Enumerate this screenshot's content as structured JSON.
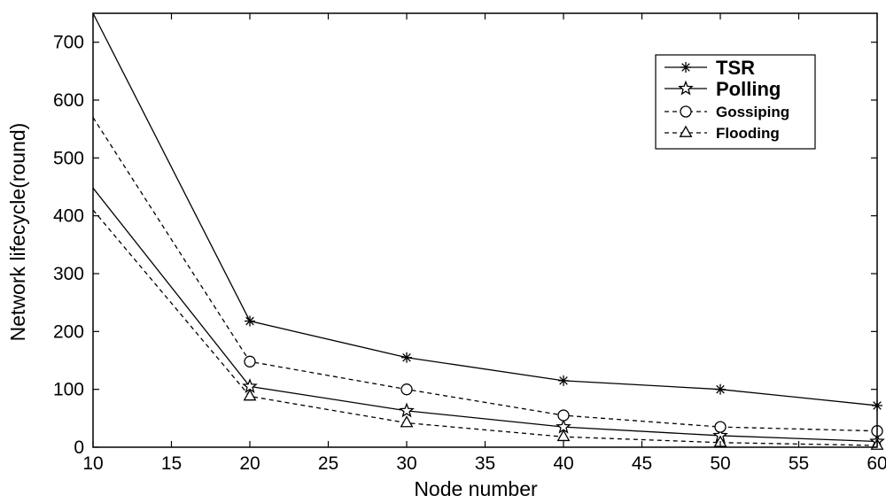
{
  "chart_data": {
    "type": "line",
    "title": "",
    "xlabel": "Node number",
    "ylabel": "Network lifecycle(round)",
    "xlim": [
      10,
      60
    ],
    "ylim": [
      0,
      750
    ],
    "xticks": [
      10,
      15,
      20,
      25,
      30,
      35,
      40,
      45,
      50,
      55,
      60
    ],
    "yticks": [
      0,
      100,
      200,
      300,
      400,
      500,
      600,
      700
    ],
    "grid": false,
    "legend_position": "top-right",
    "x": [
      10,
      20,
      30,
      40,
      50,
      60
    ],
    "series": [
      {
        "name": "TSR",
        "marker": "asterisk",
        "line_style": "solid",
        "values": [
          750,
          218,
          155,
          115,
          100,
          72
        ]
      },
      {
        "name": "Polling",
        "marker": "star",
        "line_style": "solid",
        "values": [
          448,
          105,
          63,
          35,
          20,
          10
        ]
      },
      {
        "name": "Gossiping",
        "marker": "circle",
        "line_style": "dashed",
        "values": [
          570,
          148,
          100,
          55,
          35,
          28
        ]
      },
      {
        "name": "Flooding",
        "marker": "triangle",
        "line_style": "dashed",
        "values": [
          410,
          88,
          42,
          18,
          8,
          3
        ]
      }
    ]
  }
}
